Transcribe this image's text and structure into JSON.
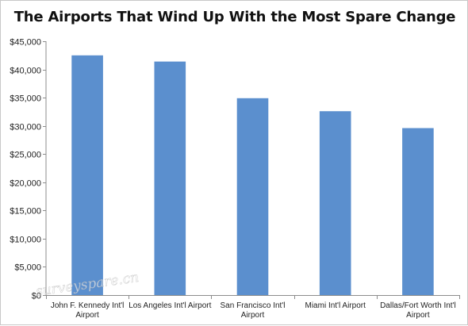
{
  "chart_data": {
    "type": "bar",
    "title": "The Airports That Wind Up With the Most Spare Change",
    "categories": [
      [
        "John F. Kennedy Int'l",
        "Airport"
      ],
      [
        "Los Angeles Int'l Airport"
      ],
      [
        "San Francisco Int'l",
        "Airport"
      ],
      [
        "Miami Int'l Airport"
      ],
      [
        "Dallas/Fort Worth Int'l",
        "Airport"
      ]
    ],
    "values": [
      42500,
      41400,
      34900,
      32600,
      29600
    ],
    "ylim": [
      0,
      45000
    ],
    "yticks": [
      0,
      5000,
      10000,
      15000,
      20000,
      25000,
      30000,
      35000,
      40000,
      45000
    ],
    "ytick_labels": [
      "$0",
      "$5,000",
      "$10,000",
      "$15,000",
      "$20,000",
      "$25,000",
      "$30,000",
      "$35,000",
      "$40,000",
      "$45,000"
    ],
    "grid": false,
    "legend": "none",
    "bar_color": "#5b8fce",
    "watermark": "surveyspare.cn"
  }
}
